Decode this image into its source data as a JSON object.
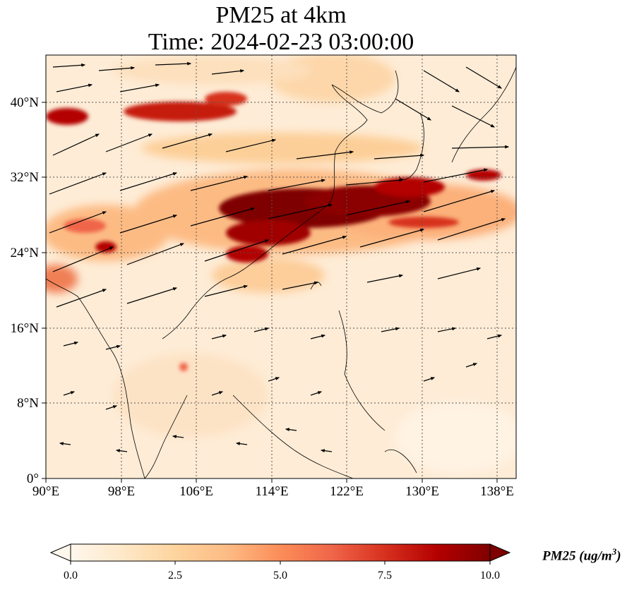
{
  "title": {
    "line1": "PM25 at 4km",
    "line2": "Time: 2024-02-23 03:00:00"
  },
  "map": {
    "lon_range": [
      90,
      140
    ],
    "lat_range": [
      0,
      45
    ],
    "x_ticks": [
      "90°E",
      "98°E",
      "106°E",
      "114°E",
      "122°E",
      "130°E",
      "138°E"
    ],
    "y_ticks": [
      "0°",
      "8°N",
      "16°N",
      "24°N",
      "32°N",
      "40°N"
    ],
    "gridlines": true,
    "coastlines": true,
    "wind_vectors": true
  },
  "colorbar": {
    "label": "PM25 (ug/m",
    "label_superscript": "3",
    "label_close": ")",
    "ticks": [
      "0.0",
      "2.5",
      "5.0",
      "7.5",
      "10.0"
    ],
    "range": [
      0,
      10
    ],
    "colormap": "OrRd",
    "colors": [
      "#fff7ec",
      "#fee8c8",
      "#fdd49e",
      "#fdbb84",
      "#fc8d59",
      "#ef6548",
      "#d7301f",
      "#b30000",
      "#7f0000"
    ]
  }
}
